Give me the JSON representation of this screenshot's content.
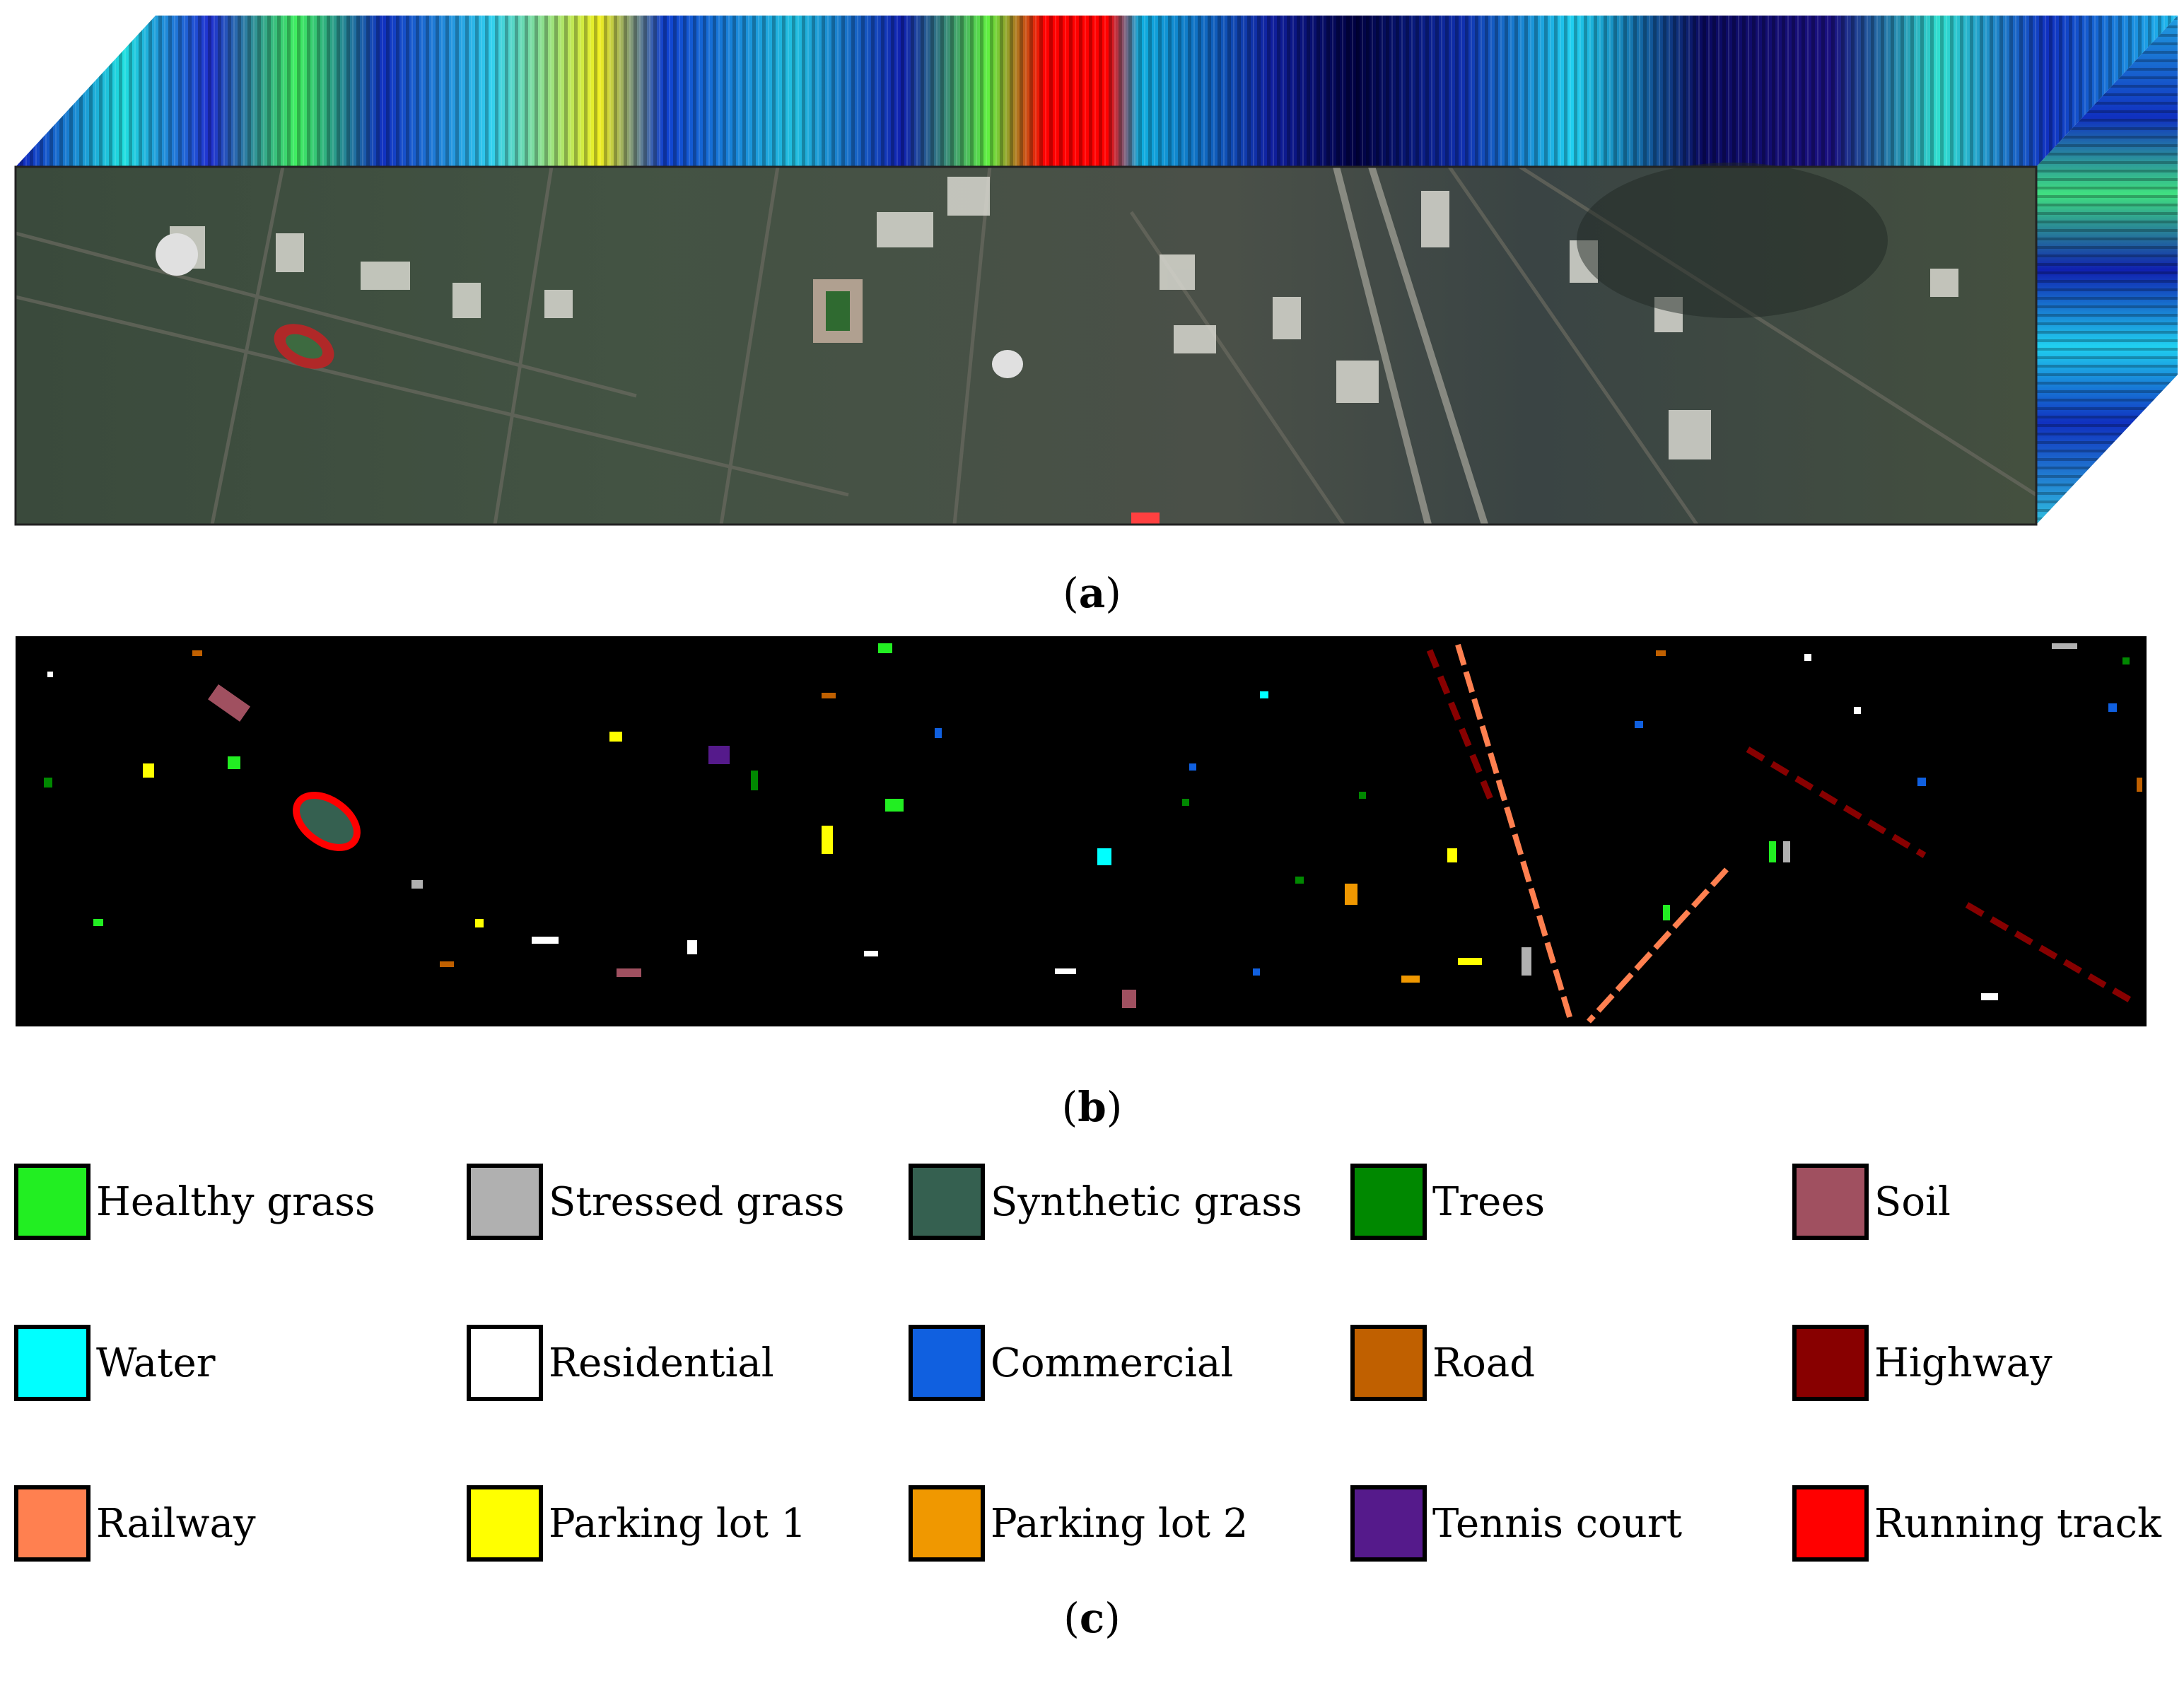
{
  "figure": {
    "panel_a": {
      "label": "a",
      "caption_open": "(",
      "caption_close": ")"
    },
    "panel_b": {
      "label": "b",
      "caption_open": "(",
      "caption_close": ")"
    },
    "panel_c": {
      "label": "c",
      "caption_open": "(",
      "caption_close": ")"
    }
  },
  "legend": {
    "items": [
      {
        "label": "Healthy grass",
        "color": "#22ee22"
      },
      {
        "label": "Stressed grass",
        "color": "#b0b0b0"
      },
      {
        "label": "Synthetic grass",
        "color": "#356050"
      },
      {
        "label": "Trees",
        "color": "#008800"
      },
      {
        "label": "Soil",
        "color": "#a05060"
      },
      {
        "label": "Water",
        "color": "#00ffff"
      },
      {
        "label": "Residential",
        "color": "#ffffff"
      },
      {
        "label": "Commercial",
        "color": "#1060e0"
      },
      {
        "label": "Road",
        "color": "#c06000"
      },
      {
        "label": "Highway",
        "color": "#880000"
      },
      {
        "label": "Railway",
        "color": "#ff8050"
      },
      {
        "label": "Parking lot 1",
        "color": "#ffff00"
      },
      {
        "label": "Parking lot 2",
        "color": "#f09800"
      },
      {
        "label": "Tennis court",
        "color": "#551a8b"
      },
      {
        "label": "Running track",
        "color": "#ff0000"
      }
    ]
  }
}
